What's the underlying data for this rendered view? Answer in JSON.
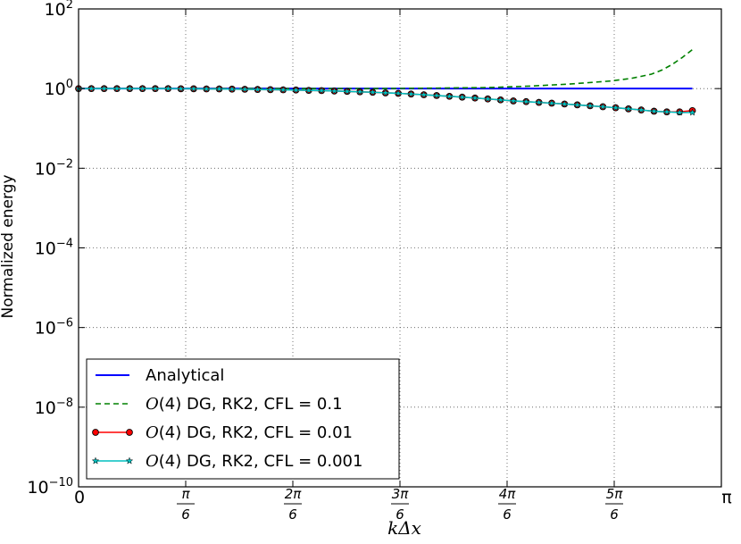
{
  "chart_data": {
    "type": "line",
    "xlabel": "kΔx",
    "ylabel": "Normalized energy",
    "yscale": "log",
    "ylim": [
      1e-10,
      100
    ],
    "xlim": [
      0,
      3.14159
    ],
    "grid": true,
    "legend_position": "lower-left",
    "x_ticks": [
      {
        "value": 0,
        "label": "0",
        "frac": false
      },
      {
        "value": 0.5236,
        "num": "π",
        "den": "6",
        "frac": true
      },
      {
        "value": 1.0472,
        "num": "2π",
        "den": "6",
        "frac": true
      },
      {
        "value": 1.5708,
        "num": "3π",
        "den": "6",
        "frac": true
      },
      {
        "value": 2.0944,
        "num": "4π",
        "den": "6",
        "frac": true
      },
      {
        "value": 2.618,
        "num": "5π",
        "den": "6",
        "frac": true
      },
      {
        "value": 3.14159,
        "label": "π",
        "frac": false
      }
    ],
    "y_ticks": [
      {
        "value": 1e-10,
        "base": "10",
        "exp": "−10"
      },
      {
        "value": 1e-08,
        "base": "10",
        "exp": "−8"
      },
      {
        "value": 1e-06,
        "base": "10",
        "exp": "−6"
      },
      {
        "value": 0.0001,
        "base": "10",
        "exp": "−4"
      },
      {
        "value": 0.01,
        "base": "10",
        "exp": "−2"
      },
      {
        "value": 1,
        "base": "10",
        "exp": "0"
      },
      {
        "value": 100,
        "base": "10",
        "exp": "2"
      }
    ],
    "series": [
      {
        "name": "Analytical",
        "color": "#0000ff",
        "style": "solid",
        "marker": "none",
        "x": [
          0.0,
          3.0
        ],
        "y": [
          1.0,
          1.0
        ]
      },
      {
        "name": "O(4) DG, RK2, CFL = 0.1",
        "color": "#008000",
        "style": "dashed",
        "marker": "none",
        "x": [
          0.0,
          0.5,
          1.0,
          1.5,
          2.0,
          2.2,
          2.4,
          2.6,
          2.7,
          2.8,
          2.85,
          2.9,
          2.95,
          3.0
        ],
        "y": [
          1.0,
          1.0,
          1.0,
          1.0,
          1.06,
          1.15,
          1.3,
          1.55,
          1.8,
          2.3,
          2.9,
          4.0,
          6.0,
          9.5
        ]
      },
      {
        "name": "O(4) DG, RK2, CFL = 0.01",
        "color": "#ff0000",
        "style": "solid",
        "marker": "circle",
        "x": [
          0.0,
          0.0625,
          0.125,
          0.1875,
          0.25,
          0.3125,
          0.375,
          0.4375,
          0.5,
          0.5625,
          0.625,
          0.6875,
          0.75,
          0.8125,
          0.875,
          0.9375,
          1.0,
          1.0625,
          1.125,
          1.1875,
          1.25,
          1.3125,
          1.375,
          1.4375,
          1.5,
          1.5625,
          1.625,
          1.6875,
          1.75,
          1.8125,
          1.875,
          1.9375,
          2.0,
          2.0625,
          2.125,
          2.1875,
          2.25,
          2.3125,
          2.375,
          2.4375,
          2.5,
          2.5625,
          2.625,
          2.6875,
          2.75,
          2.8125,
          2.875,
          2.9375,
          3.0
        ],
        "y": [
          1.0,
          1.0,
          1.0,
          1.0,
          1.0,
          1.0,
          1.0,
          1.0,
          0.99,
          0.99,
          0.98,
          0.98,
          0.97,
          0.96,
          0.95,
          0.94,
          0.93,
          0.92,
          0.9,
          0.89,
          0.87,
          0.85,
          0.83,
          0.81,
          0.78,
          0.76,
          0.73,
          0.7,
          0.67,
          0.64,
          0.61,
          0.58,
          0.55,
          0.52,
          0.49,
          0.47,
          0.45,
          0.43,
          0.41,
          0.39,
          0.37,
          0.35,
          0.33,
          0.31,
          0.29,
          0.27,
          0.26,
          0.26,
          0.28
        ]
      },
      {
        "name": "O(4) DG, RK2, CFL = 0.001",
        "color": "#00bfbf",
        "style": "solid",
        "marker": "star",
        "x": [
          0.0,
          0.0625,
          0.125,
          0.1875,
          0.25,
          0.3125,
          0.375,
          0.4375,
          0.5,
          0.5625,
          0.625,
          0.6875,
          0.75,
          0.8125,
          0.875,
          0.9375,
          1.0,
          1.0625,
          1.125,
          1.1875,
          1.25,
          1.3125,
          1.375,
          1.4375,
          1.5,
          1.5625,
          1.625,
          1.6875,
          1.75,
          1.8125,
          1.875,
          1.9375,
          2.0,
          2.0625,
          2.125,
          2.1875,
          2.25,
          2.3125,
          2.375,
          2.4375,
          2.5,
          2.5625,
          2.625,
          2.6875,
          2.75,
          2.8125,
          2.875,
          2.9375,
          3.0
        ],
        "y": [
          1.0,
          1.0,
          1.0,
          1.0,
          1.0,
          1.0,
          1.0,
          1.0,
          0.99,
          0.99,
          0.98,
          0.98,
          0.97,
          0.96,
          0.95,
          0.94,
          0.93,
          0.92,
          0.9,
          0.89,
          0.87,
          0.85,
          0.83,
          0.81,
          0.78,
          0.76,
          0.73,
          0.7,
          0.67,
          0.64,
          0.61,
          0.58,
          0.55,
          0.52,
          0.49,
          0.47,
          0.45,
          0.43,
          0.41,
          0.39,
          0.37,
          0.35,
          0.33,
          0.31,
          0.29,
          0.27,
          0.26,
          0.25,
          0.25
        ]
      }
    ]
  }
}
